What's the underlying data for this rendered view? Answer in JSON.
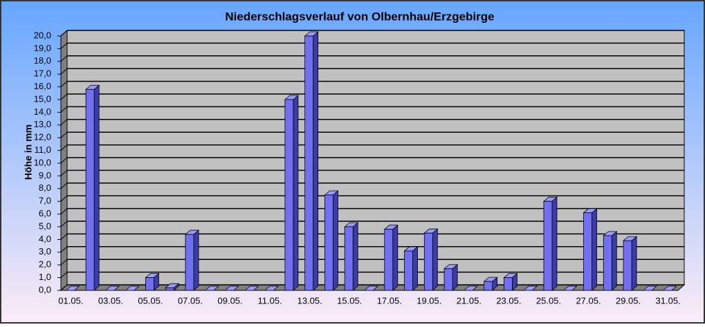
{
  "chart_data": {
    "type": "bar3d",
    "title": "Niederschlagsverlauf von Olbernhau/Erzgebirge",
    "y_label": "Höhe in mm",
    "categories": [
      "01.05.",
      null,
      "03.05.",
      null,
      "05.05.",
      null,
      "07.05.",
      null,
      "09.05.",
      null,
      "11.05.",
      null,
      "13.05.",
      null,
      "15.05.",
      null,
      "17.05.",
      null,
      "19.05.",
      null,
      "21.05.",
      null,
      "23.05.",
      null,
      "25.05.",
      null,
      "27.05.",
      null,
      "29.05.",
      null,
      "31.05."
    ],
    "values": [
      0,
      15.8,
      0,
      0,
      1.0,
      0.2,
      4.4,
      0,
      0,
      0,
      0,
      15.0,
      20.0,
      7.5,
      5.0,
      0,
      4.8,
      3.1,
      4.5,
      1.7,
      0,
      0.7,
      1.0,
      0,
      7.0,
      0,
      6.1,
      4.3,
      3.9,
      0,
      0
    ],
    "color": "#7070f0",
    "ylim": [
      0,
      20
    ],
    "yticks": [
      {
        "value": 0,
        "label": "0,0"
      },
      {
        "value": 1,
        "label": "1,0"
      },
      {
        "value": 2,
        "label": "2,0"
      },
      {
        "value": 3,
        "label": "3,0"
      },
      {
        "value": 4,
        "label": "4,0"
      },
      {
        "value": 5,
        "label": "5,0"
      },
      {
        "value": 6,
        "label": "6,0"
      },
      {
        "value": 7,
        "label": "7,0"
      },
      {
        "value": 8,
        "label": "8,0"
      },
      {
        "value": 9,
        "label": "9,0"
      },
      {
        "value": 10,
        "label": "10,0"
      },
      {
        "value": 11,
        "label": "11,0"
      },
      {
        "value": 12,
        "label": "12,0"
      },
      {
        "value": 13,
        "label": "13,0"
      },
      {
        "value": 14,
        "label": "14,0"
      },
      {
        "value": 15,
        "label": "15,0"
      },
      {
        "value": 16,
        "label": "16,0"
      },
      {
        "value": 17,
        "label": "17,0"
      },
      {
        "value": 18,
        "label": "18,0"
      },
      {
        "value": 19,
        "label": "19,0"
      },
      {
        "value": 20,
        "label": "20,0"
      }
    ],
    "grid": true
  }
}
